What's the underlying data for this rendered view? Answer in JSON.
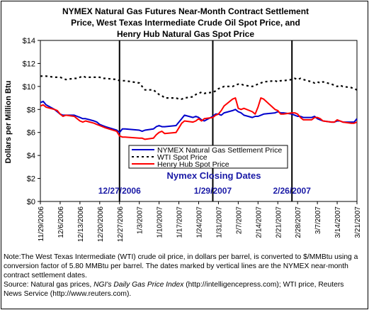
{
  "title_lines": [
    "NYMEX Natural Gas Futures Near-Month Contract Settlement",
    "Price, West Texas Intermediate Crude Oil Spot Price, and",
    "Henry Hub Natural Gas Spot Price"
  ],
  "chart_data": {
    "type": "line",
    "ylabel": "Dollars per Million Btu",
    "ylim": [
      0,
      14
    ],
    "ytick_labels": [
      "$0",
      "$2",
      "$4",
      "$6",
      "$8",
      "$10",
      "$12",
      "$14"
    ],
    "xlim": [
      "2006-11-29",
      "2007-03-21"
    ],
    "xtick_labels": [
      "11/29/2006",
      "12/6/2006",
      "12/13/2006",
      "12/20/2006",
      "12/27/2006",
      "1/3/2007",
      "1/10/2007",
      "1/17/2007",
      "1/24/2007",
      "1/31/2007",
      "2/7/2007",
      "2/14/2007",
      "2/21/2007",
      "2/28/2007",
      "3/7/2007",
      "3/14/2007",
      "3/21/2007"
    ],
    "series": [
      {
        "name": "NYMEX Natural Gas Settlement Price",
        "color": "#0000cc",
        "style": "solid",
        "x": [
          "2006-11-29",
          "2006-11-30",
          "2006-12-01",
          "2006-12-04",
          "2006-12-05",
          "2006-12-06",
          "2006-12-07",
          "2006-12-08",
          "2006-12-11",
          "2006-12-12",
          "2006-12-13",
          "2006-12-14",
          "2006-12-15",
          "2006-12-18",
          "2006-12-19",
          "2006-12-20",
          "2006-12-21",
          "2006-12-22",
          "2006-12-26",
          "2006-12-27",
          "2006-12-28",
          "2006-12-29",
          "2007-01-03",
          "2007-01-04",
          "2007-01-05",
          "2007-01-08",
          "2007-01-09",
          "2007-01-10",
          "2007-01-11",
          "2007-01-12",
          "2007-01-16",
          "2007-01-17",
          "2007-01-18",
          "2007-01-19",
          "2007-01-22",
          "2007-01-23",
          "2007-01-24",
          "2007-01-25",
          "2007-01-26",
          "2007-01-29",
          "2007-01-30",
          "2007-01-31",
          "2007-02-01",
          "2007-02-02",
          "2007-02-05",
          "2007-02-06",
          "2007-02-07",
          "2007-02-08",
          "2007-02-09",
          "2007-02-12",
          "2007-02-13",
          "2007-02-14",
          "2007-02-15",
          "2007-02-16",
          "2007-02-20",
          "2007-02-21",
          "2007-02-22",
          "2007-02-23",
          "2007-02-26",
          "2007-02-27",
          "2007-02-28",
          "2007-03-01",
          "2007-03-02",
          "2007-03-05",
          "2007-03-06",
          "2007-03-07",
          "2007-03-08",
          "2007-03-09",
          "2007-03-12",
          "2007-03-13",
          "2007-03-14",
          "2007-03-15",
          "2007-03-16",
          "2007-03-19",
          "2007-03-20",
          "2007-03-21"
        ],
        "values": [
          8.6,
          8.7,
          8.4,
          8.0,
          7.8,
          7.6,
          7.5,
          7.5,
          7.5,
          7.4,
          7.3,
          7.2,
          7.2,
          7.0,
          6.9,
          6.7,
          6.6,
          6.5,
          6.2,
          6.0,
          6.3,
          6.3,
          6.2,
          6.1,
          6.2,
          6.3,
          6.5,
          6.6,
          6.5,
          6.5,
          6.6,
          6.9,
          7.2,
          7.5,
          7.3,
          7.4,
          7.3,
          7.1,
          7.0,
          7.4,
          7.6,
          7.6,
          7.5,
          7.7,
          7.9,
          8.0,
          7.8,
          7.7,
          7.5,
          7.3,
          7.4,
          7.4,
          7.5,
          7.6,
          7.7,
          7.8,
          7.7,
          7.7,
          7.6,
          7.5,
          7.4,
          7.4,
          7.3,
          7.3,
          7.4,
          7.2,
          7.1,
          7.0,
          6.9,
          6.9,
          7.0,
          7.0,
          6.9,
          6.9,
          6.9,
          7.2
        ]
      },
      {
        "name": "WTI Spot Price",
        "color": "#000000",
        "style": "dotted",
        "x": [
          "2006-11-29",
          "2006-11-30",
          "2006-12-01",
          "2006-12-04",
          "2006-12-05",
          "2006-12-06",
          "2006-12-07",
          "2006-12-08",
          "2006-12-11",
          "2006-12-12",
          "2006-12-13",
          "2006-12-14",
          "2006-12-15",
          "2006-12-18",
          "2006-12-19",
          "2006-12-20",
          "2006-12-21",
          "2006-12-22",
          "2006-12-26",
          "2006-12-27",
          "2006-12-28",
          "2006-12-29",
          "2007-01-03",
          "2007-01-04",
          "2007-01-05",
          "2007-01-08",
          "2007-01-09",
          "2007-01-10",
          "2007-01-11",
          "2007-01-12",
          "2007-01-16",
          "2007-01-17",
          "2007-01-18",
          "2007-01-19",
          "2007-01-22",
          "2007-01-23",
          "2007-01-24",
          "2007-01-25",
          "2007-01-26",
          "2007-01-29",
          "2007-01-30",
          "2007-01-31",
          "2007-02-01",
          "2007-02-02",
          "2007-02-05",
          "2007-02-06",
          "2007-02-07",
          "2007-02-08",
          "2007-02-09",
          "2007-02-12",
          "2007-02-13",
          "2007-02-14",
          "2007-02-15",
          "2007-02-16",
          "2007-02-20",
          "2007-02-21",
          "2007-02-22",
          "2007-02-23",
          "2007-02-26",
          "2007-02-27",
          "2007-02-28",
          "2007-03-01",
          "2007-03-02",
          "2007-03-05",
          "2007-03-06",
          "2007-03-07",
          "2007-03-08",
          "2007-03-09",
          "2007-03-12",
          "2007-03-13",
          "2007-03-14",
          "2007-03-15",
          "2007-03-16",
          "2007-03-19",
          "2007-03-20",
          "2007-03-21"
        ],
        "values": [
          10.9,
          10.9,
          10.9,
          10.8,
          10.8,
          10.8,
          10.7,
          10.6,
          10.7,
          10.7,
          10.8,
          10.9,
          10.8,
          10.8,
          10.8,
          10.8,
          10.7,
          10.7,
          10.6,
          10.5,
          10.5,
          10.5,
          10.3,
          10.0,
          9.7,
          9.7,
          9.5,
          9.3,
          9.2,
          9.0,
          9.0,
          8.9,
          8.9,
          9.0,
          9.1,
          9.3,
          9.4,
          9.5,
          9.4,
          9.5,
          9.6,
          9.8,
          9.9,
          10.0,
          10.0,
          10.1,
          10.2,
          10.2,
          10.1,
          10.0,
          10.1,
          10.2,
          10.3,
          10.4,
          10.5,
          10.4,
          10.5,
          10.5,
          10.6,
          10.7,
          10.6,
          10.7,
          10.6,
          10.4,
          10.3,
          10.4,
          10.3,
          10.4,
          10.2,
          10.1,
          10.0,
          10.1,
          10.0,
          9.9,
          9.8,
          9.7
        ]
      },
      {
        "name": "Henry Hub Spot Price",
        "color": "#ff0000",
        "style": "solid",
        "x": [
          "2006-11-29",
          "2006-11-30",
          "2006-12-01",
          "2006-12-04",
          "2006-12-05",
          "2006-12-06",
          "2006-12-07",
          "2006-12-08",
          "2006-12-11",
          "2006-12-12",
          "2006-12-13",
          "2006-12-14",
          "2006-12-15",
          "2006-12-18",
          "2006-12-19",
          "2006-12-20",
          "2006-12-21",
          "2006-12-22",
          "2006-12-26",
          "2006-12-27",
          "2006-12-28",
          "2006-12-29",
          "2007-01-03",
          "2007-01-04",
          "2007-01-05",
          "2007-01-08",
          "2007-01-09",
          "2007-01-10",
          "2007-01-11",
          "2007-01-12",
          "2007-01-16",
          "2007-01-17",
          "2007-01-18",
          "2007-01-19",
          "2007-01-22",
          "2007-01-23",
          "2007-01-24",
          "2007-01-25",
          "2007-01-26",
          "2007-01-29",
          "2007-01-30",
          "2007-01-31",
          "2007-02-01",
          "2007-02-02",
          "2007-02-05",
          "2007-02-06",
          "2007-02-07",
          "2007-02-08",
          "2007-02-09",
          "2007-02-12",
          "2007-02-13",
          "2007-02-14",
          "2007-02-15",
          "2007-02-16",
          "2007-02-20",
          "2007-02-21",
          "2007-02-22",
          "2007-02-23",
          "2007-02-26",
          "2007-02-27",
          "2007-02-28",
          "2007-03-01",
          "2007-03-02",
          "2007-03-05",
          "2007-03-06",
          "2007-03-07",
          "2007-03-08",
          "2007-03-09",
          "2007-03-12",
          "2007-03-13",
          "2007-03-14",
          "2007-03-15",
          "2007-03-16",
          "2007-03-19",
          "2007-03-20",
          "2007-03-21"
        ],
        "values": [
          8.3,
          8.4,
          8.2,
          8.0,
          7.9,
          7.6,
          7.4,
          7.5,
          7.4,
          7.2,
          7.0,
          6.9,
          7.0,
          6.8,
          6.7,
          6.6,
          6.5,
          6.4,
          6.1,
          5.7,
          5.6,
          5.6,
          5.5,
          5.5,
          5.4,
          5.5,
          5.8,
          6.0,
          6.1,
          5.9,
          6.0,
          6.4,
          6.8,
          7.0,
          6.9,
          7.0,
          7.2,
          7.0,
          7.2,
          7.3,
          7.5,
          7.6,
          7.9,
          8.3,
          8.9,
          9.0,
          8.1,
          8.0,
          8.1,
          7.8,
          7.6,
          8.2,
          9.0,
          8.9,
          8.0,
          7.9,
          7.6,
          7.6,
          7.7,
          7.7,
          7.6,
          7.3,
          7.1,
          7.1,
          7.3,
          7.3,
          7.2,
          7.0,
          6.9,
          6.9,
          7.1,
          7.0,
          6.9,
          6.8,
          6.8,
          6.9
        ]
      }
    ],
    "vertical_lines": [
      "2006-12-27",
      "2007-01-29",
      "2007-02-26"
    ],
    "vertical_line_labels": [
      "12/27/2006",
      "1/29/2007",
      "2/26/2007"
    ],
    "annotation_title": "Nymex Closing Dates",
    "grid": false,
    "legend_placement": "bottom-center"
  },
  "note": {
    "line1": "Note:The West Texas Intermediate (WTI) crude oil price, in dollars per barrel,  is converted to $/MMBtu using a conversion factor of 5.80 MMBtu per barrel.  The dates marked by vertical lines are the NYMEX near-month contract settlement dates.",
    "source_prefix": "Source: Natural gas prices, ",
    "source_italic": "NGI's Daily Gas Price Index",
    "source_suffix": " (http://intelligencepress.com); WTI price, Reuters News Service (http://www.reuters.com)."
  }
}
